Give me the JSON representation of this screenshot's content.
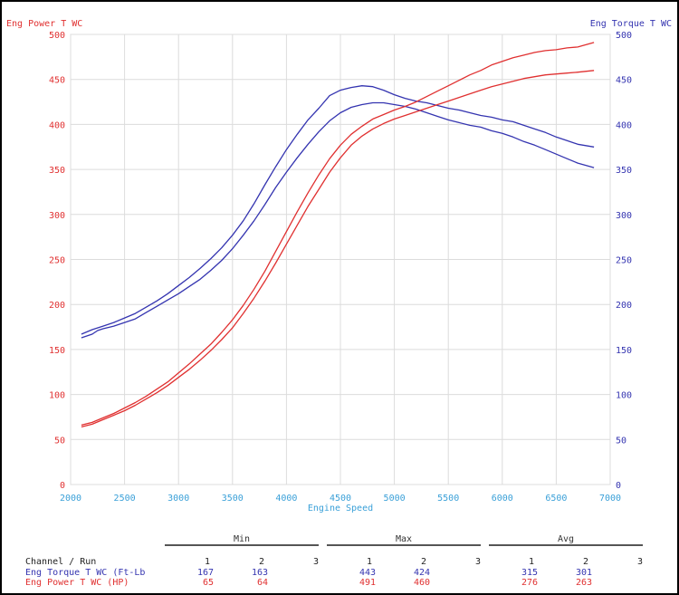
{
  "chart_data": {
    "type": "line",
    "xlabel": "Engine Speed",
    "y_left_label": "Eng Power T WC",
    "y_right_label": "Eng Torque T WC",
    "xlim": [
      2000,
      7000
    ],
    "ylim": [
      0,
      500
    ],
    "x_ticks": [
      "2000",
      "2500",
      "3000",
      "3500",
      "4000",
      "4500",
      "5000",
      "5500",
      "6000",
      "6500",
      "7000"
    ],
    "y_ticks": [
      "0",
      "50",
      "100",
      "150",
      "200",
      "250",
      "300",
      "350",
      "400",
      "450",
      "500"
    ],
    "grid": true,
    "colors": {
      "power": "#e03030",
      "torque": "#3434b0",
      "xaxis": "#3aa0d8"
    },
    "series": [
      {
        "key": "torque1",
        "axis": "right",
        "color": "#3434b0",
        "points": [
          [
            2100,
            167
          ],
          [
            2200,
            172
          ],
          [
            2300,
            176
          ],
          [
            2400,
            180
          ],
          [
            2500,
            185
          ],
          [
            2600,
            190
          ],
          [
            2700,
            197
          ],
          [
            2800,
            204
          ],
          [
            2900,
            212
          ],
          [
            3000,
            221
          ],
          [
            3100,
            230
          ],
          [
            3200,
            240
          ],
          [
            3300,
            251
          ],
          [
            3400,
            263
          ],
          [
            3500,
            277
          ],
          [
            3600,
            293
          ],
          [
            3700,
            312
          ],
          [
            3800,
            333
          ],
          [
            3900,
            353
          ],
          [
            4000,
            372
          ],
          [
            4100,
            389
          ],
          [
            4200,
            405
          ],
          [
            4300,
            418
          ],
          [
            4400,
            432
          ],
          [
            4500,
            438
          ],
          [
            4600,
            441
          ],
          [
            4700,
            443
          ],
          [
            4800,
            442
          ],
          [
            4900,
            438
          ],
          [
            5000,
            433
          ],
          [
            5100,
            429
          ],
          [
            5200,
            426
          ],
          [
            5300,
            424
          ],
          [
            5400,
            421
          ],
          [
            5500,
            418
          ],
          [
            5600,
            416
          ],
          [
            5700,
            413
          ],
          [
            5800,
            410
          ],
          [
            5900,
            408
          ],
          [
            6000,
            405
          ],
          [
            6100,
            403
          ],
          [
            6200,
            399
          ],
          [
            6300,
            395
          ],
          [
            6400,
            391
          ],
          [
            6500,
            386
          ],
          [
            6600,
            382
          ],
          [
            6700,
            378
          ],
          [
            6850,
            375
          ]
        ]
      },
      {
        "key": "torque2",
        "axis": "right",
        "color": "#3434b0",
        "points": [
          [
            2100,
            163
          ],
          [
            2200,
            167
          ],
          [
            2250,
            171
          ],
          [
            2300,
            173
          ],
          [
            2400,
            176
          ],
          [
            2500,
            180
          ],
          [
            2600,
            184
          ],
          [
            2700,
            191
          ],
          [
            2800,
            198
          ],
          [
            2900,
            205
          ],
          [
            3000,
            212
          ],
          [
            3100,
            220
          ],
          [
            3200,
            228
          ],
          [
            3300,
            238
          ],
          [
            3400,
            249
          ],
          [
            3500,
            262
          ],
          [
            3600,
            277
          ],
          [
            3700,
            293
          ],
          [
            3800,
            311
          ],
          [
            3900,
            330
          ],
          [
            4000,
            347
          ],
          [
            4100,
            363
          ],
          [
            4200,
            378
          ],
          [
            4300,
            392
          ],
          [
            4400,
            404
          ],
          [
            4500,
            413
          ],
          [
            4600,
            419
          ],
          [
            4700,
            422
          ],
          [
            4800,
            424
          ],
          [
            4900,
            424
          ],
          [
            5000,
            422
          ],
          [
            5100,
            420
          ],
          [
            5200,
            417
          ],
          [
            5300,
            413
          ],
          [
            5400,
            409
          ],
          [
            5500,
            405
          ],
          [
            5600,
            402
          ],
          [
            5700,
            399
          ],
          [
            5800,
            397
          ],
          [
            5900,
            393
          ],
          [
            6000,
            390
          ],
          [
            6100,
            386
          ],
          [
            6200,
            381
          ],
          [
            6300,
            377
          ],
          [
            6400,
            372
          ],
          [
            6500,
            367
          ],
          [
            6600,
            362
          ],
          [
            6700,
            357
          ],
          [
            6850,
            352
          ]
        ]
      },
      {
        "key": "power1",
        "axis": "left",
        "color": "#e03030",
        "points": [
          [
            2100,
            66
          ],
          [
            2200,
            69
          ],
          [
            2300,
            74
          ],
          [
            2400,
            79
          ],
          [
            2500,
            85
          ],
          [
            2600,
            91
          ],
          [
            2700,
            98
          ],
          [
            2800,
            106
          ],
          [
            2900,
            114
          ],
          [
            3000,
            124
          ],
          [
            3100,
            134
          ],
          [
            3200,
            145
          ],
          [
            3300,
            156
          ],
          [
            3400,
            169
          ],
          [
            3500,
            183
          ],
          [
            3600,
            199
          ],
          [
            3700,
            217
          ],
          [
            3800,
            237
          ],
          [
            3900,
            259
          ],
          [
            4000,
            281
          ],
          [
            4100,
            303
          ],
          [
            4200,
            324
          ],
          [
            4300,
            344
          ],
          [
            4400,
            362
          ],
          [
            4500,
            377
          ],
          [
            4600,
            389
          ],
          [
            4700,
            398
          ],
          [
            4800,
            406
          ],
          [
            4900,
            411
          ],
          [
            5000,
            416
          ],
          [
            5100,
            420
          ],
          [
            5200,
            425
          ],
          [
            5300,
            431
          ],
          [
            5400,
            437
          ],
          [
            5500,
            443
          ],
          [
            5600,
            449
          ],
          [
            5700,
            455
          ],
          [
            5800,
            460
          ],
          [
            5900,
            466
          ],
          [
            6000,
            470
          ],
          [
            6100,
            474
          ],
          [
            6200,
            477
          ],
          [
            6300,
            480
          ],
          [
            6400,
            482
          ],
          [
            6500,
            483
          ],
          [
            6600,
            485
          ],
          [
            6700,
            486
          ],
          [
            6850,
            491
          ]
        ]
      },
      {
        "key": "power2",
        "axis": "left",
        "color": "#e03030",
        "points": [
          [
            2100,
            64
          ],
          [
            2200,
            67
          ],
          [
            2300,
            72
          ],
          [
            2400,
            77
          ],
          [
            2500,
            82
          ],
          [
            2600,
            88
          ],
          [
            2700,
            95
          ],
          [
            2800,
            102
          ],
          [
            2900,
            110
          ],
          [
            3000,
            119
          ],
          [
            3100,
            128
          ],
          [
            3200,
            138
          ],
          [
            3300,
            149
          ],
          [
            3400,
            161
          ],
          [
            3500,
            174
          ],
          [
            3600,
            190
          ],
          [
            3700,
            207
          ],
          [
            3800,
            226
          ],
          [
            3900,
            246
          ],
          [
            4000,
            267
          ],
          [
            4100,
            288
          ],
          [
            4200,
            309
          ],
          [
            4300,
            328
          ],
          [
            4400,
            347
          ],
          [
            4500,
            363
          ],
          [
            4600,
            377
          ],
          [
            4700,
            387
          ],
          [
            4800,
            395
          ],
          [
            4900,
            401
          ],
          [
            5000,
            406
          ],
          [
            5100,
            410
          ],
          [
            5200,
            414
          ],
          [
            5300,
            418
          ],
          [
            5400,
            422
          ],
          [
            5500,
            426
          ],
          [
            5600,
            430
          ],
          [
            5700,
            434
          ],
          [
            5800,
            438
          ],
          [
            5900,
            442
          ],
          [
            6000,
            445
          ],
          [
            6100,
            448
          ],
          [
            6200,
            451
          ],
          [
            6300,
            453
          ],
          [
            6400,
            455
          ],
          [
            6500,
            456
          ],
          [
            6600,
            457
          ],
          [
            6700,
            458
          ],
          [
            6850,
            460
          ]
        ]
      }
    ],
    "table": {
      "groups": [
        "Min",
        "Max",
        "Avg"
      ],
      "header_label": "Channel / Run",
      "runs": [
        "1",
        "2",
        "3"
      ],
      "rows": [
        {
          "label": "Eng Torque T WC (Ft-Lb",
          "color": "#3434b0",
          "min": [
            "167",
            "163",
            ""
          ],
          "max": [
            "443",
            "424",
            ""
          ],
          "avg": [
            "315",
            "301",
            ""
          ]
        },
        {
          "label": "Eng Power T WC (HP)",
          "color": "#e03030",
          "min": [
            "65",
            "64",
            ""
          ],
          "max": [
            "491",
            "460",
            ""
          ],
          "avg": [
            "276",
            "263",
            ""
          ]
        }
      ]
    }
  }
}
